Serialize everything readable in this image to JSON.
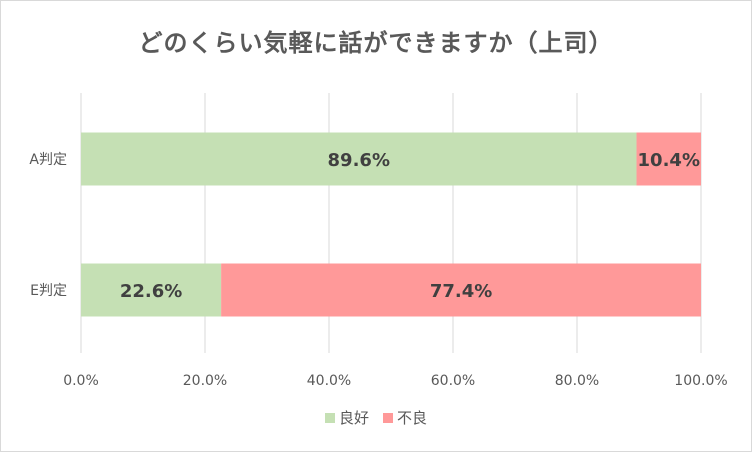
{
  "chart_data": {
    "type": "bar",
    "orientation": "horizontal",
    "stacked": true,
    "title": "どのくらい気軽に話ができますか（上司）",
    "categories": [
      "A判定",
      "E判定"
    ],
    "series": [
      {
        "name": "良好",
        "values": [
          89.6,
          22.6
        ],
        "labels": [
          "89.6%",
          "22.6%"
        ],
        "color": "#c5e0b4"
      },
      {
        "name": "不良",
        "values": [
          10.4,
          77.4
        ],
        "labels": [
          "10.4%",
          "77.4%"
        ],
        "color": "#ff9999"
      }
    ],
    "xlim": [
      0,
      100
    ],
    "xticks": [
      "0.0%",
      "20.0%",
      "40.0%",
      "60.0%",
      "80.0%",
      "100.0%"
    ],
    "grid": true,
    "legend": "bottom"
  }
}
